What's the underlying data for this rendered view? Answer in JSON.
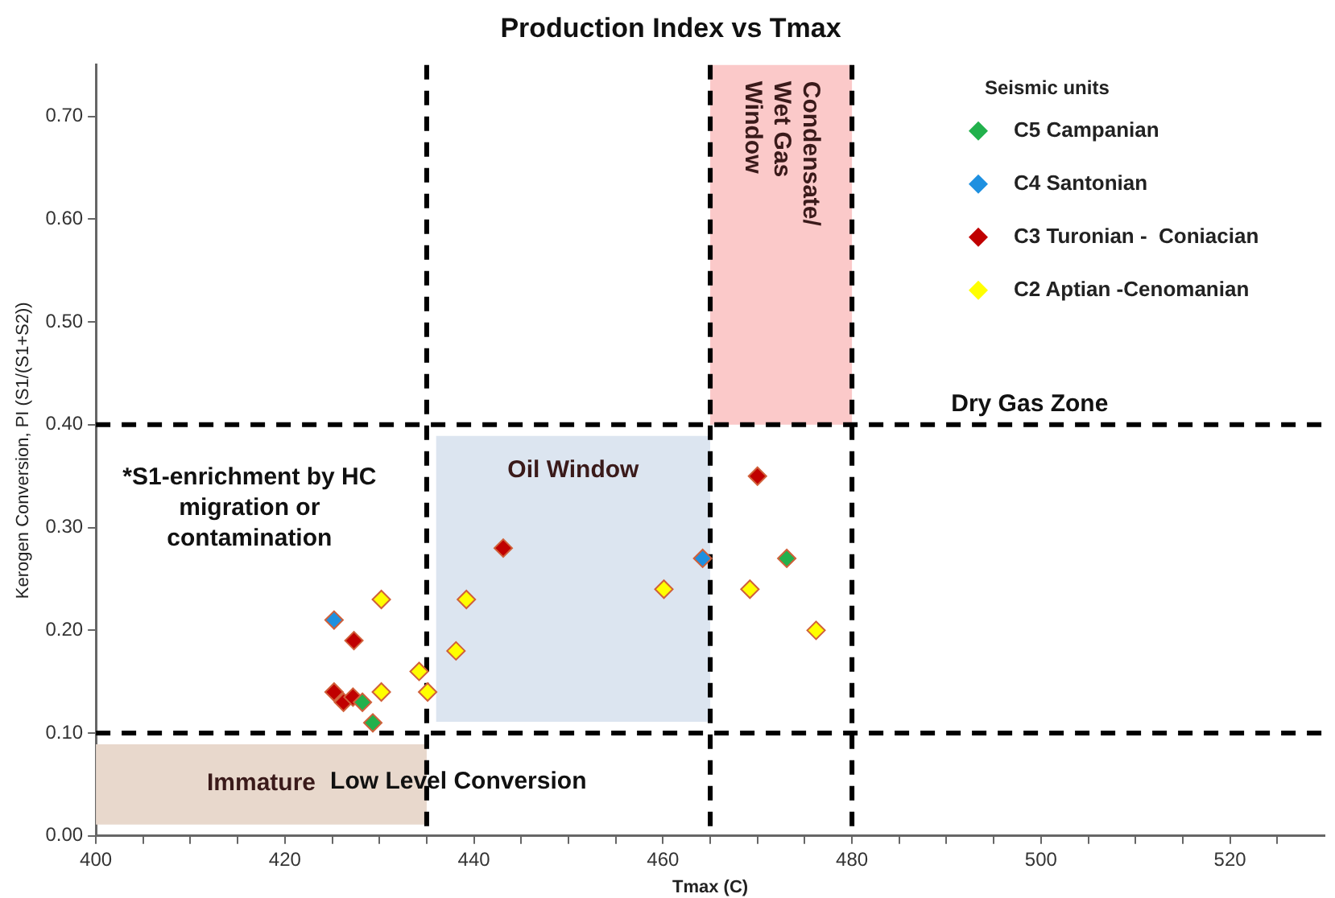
{
  "chart_data": {
    "type": "scatter",
    "title": "Production Index vs Tmax",
    "xlabel": "Tmax (C)",
    "ylabel": "Kerogen Conversion, PI (S1/(S1+S2))",
    "legend_title": "Seismic units",
    "xlim": [
      400,
      530
    ],
    "ylim": [
      0,
      0.75
    ],
    "xticks": [
      400,
      {
        "value": 405,
        "label": null
      },
      {
        "value": 410,
        "label": null
      },
      {
        "value": 415,
        "label": null
      },
      420,
      {
        "value": 425,
        "label": null
      },
      {
        "value": 430,
        "label": null
      },
      {
        "value": 435,
        "label": null
      },
      440,
      {
        "value": 445,
        "label": null
      },
      {
        "value": 450,
        "label": null
      },
      {
        "value": 455,
        "label": null
      },
      460,
      {
        "value": 465,
        "label": null
      },
      {
        "value": 470,
        "label": null
      },
      {
        "value": 475,
        "label": null
      },
      480,
      {
        "value": 485,
        "label": null
      },
      {
        "value": 490,
        "label": null
      },
      {
        "value": 495,
        "label": null
      },
      500,
      {
        "value": 505,
        "label": null
      },
      {
        "value": 510,
        "label": null
      },
      {
        "value": 515,
        "label": null
      },
      520,
      {
        "value": 525,
        "label": null
      }
    ],
    "yticks": [
      {
        "value": 0,
        "label": "0.00"
      },
      {
        "value": 0.1,
        "label": "0.10"
      },
      {
        "value": 0.2,
        "label": "0.20"
      },
      {
        "value": 0.3,
        "label": "0.30"
      },
      {
        "value": 0.4,
        "label": "0.40"
      },
      {
        "value": 0.5,
        "label": "0.50"
      },
      {
        "value": 0.6,
        "label": "0.60"
      },
      {
        "value": 0.7,
        "label": "0.70"
      }
    ],
    "grid": false,
    "legend": "top right",
    "marker": "diamond",
    "series": [
      {
        "name": "C5 Campanian",
        "color": "#22b14c",
        "x": [
          428.2,
          429.3,
          473.1
        ],
        "values": [
          0.13,
          0.11,
          0.27
        ]
      },
      {
        "name": "C4 Santonian",
        "color": "#1e90e0",
        "x": [
          425.2,
          464.2
        ],
        "values": [
          0.21,
          0.27
        ]
      },
      {
        "name": "C3 Turonian -  Coniacian",
        "color": "#c00000",
        "x": [
          427.3,
          425.2,
          426.2,
          427.2,
          443.1,
          470.0
        ],
        "values": [
          0.19,
          0.14,
          0.13,
          0.135,
          0.28,
          0.35
        ]
      },
      {
        "name": "C2 Aptian -Cenomanian",
        "color": "#ffff00",
        "x": [
          430.2,
          430.2,
          434.2,
          435.1,
          438.1,
          439.2,
          460.1,
          469.2,
          476.2
        ],
        "values": [
          0.23,
          0.14,
          0.16,
          0.14,
          0.18,
          0.23,
          0.24,
          0.24,
          0.2
        ]
      }
    ],
    "ref_lines": [
      {
        "axis": "x",
        "value": 435,
        "color": "#000000",
        "line_style": "dashed"
      },
      {
        "axis": "x",
        "value": 465,
        "color": "#000000",
        "line_style": "dashed"
      },
      {
        "axis": "x",
        "value": 480,
        "color": "#000000",
        "line_style": "dashed"
      },
      {
        "axis": "y",
        "value": 0.1,
        "color": "#000000",
        "line_style": "dashed"
      },
      {
        "axis": "y",
        "value": 0.4,
        "color": "#000000",
        "line_style": "dashed"
      }
    ],
    "bands": [
      {
        "axis": "x",
        "from": 400,
        "to": 435,
        "label": "Immature",
        "color": "#e8d8cc"
      },
      {
        "axis": "x",
        "from": 436,
        "to": 465,
        "label": "Oil Window",
        "color": "#dce5f0"
      },
      {
        "axis": "x",
        "from": 465,
        "to": 480,
        "label": "Condensate/\nWet Gas\nWindow",
        "color": "#fbc9c9"
      }
    ],
    "annotations": [
      "*S1-enrichment by HC\nmigration or\ncontamination",
      "Low Level Conversion",
      "Dry Gas Zone"
    ]
  }
}
